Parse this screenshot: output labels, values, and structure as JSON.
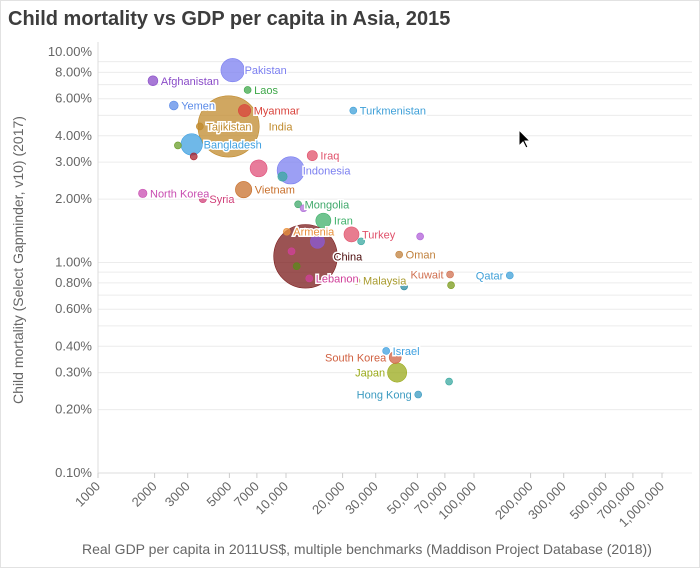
{
  "chart_data": {
    "type": "scatter",
    "title": "Child mortality vs GDP per capita in Asia, 2015",
    "xlabel": "Real GDP per capita in 2011US$, multiple benchmarks (Maddison Project Database (2018))",
    "ylabel": "Child mortality (Select Gapminder, v10) (2017)",
    "x_scale": "log",
    "y_scale": "log",
    "xlim": [
      1000,
      1000000
    ],
    "ylim": [
      0.1,
      10
    ],
    "grid": "horizontal",
    "x_ticks": [
      "1000",
      "2000",
      "3000",
      "5000",
      "7000",
      "10,000",
      "20,000",
      "30,000",
      "50,000",
      "70,000",
      "100,000",
      "200,000",
      "300,000",
      "500,000",
      "700,000",
      "1,000,000"
    ],
    "x_tick_values": [
      1000,
      2000,
      3000,
      5000,
      7000,
      10000,
      20000,
      30000,
      50000,
      70000,
      100000,
      200000,
      300000,
      500000,
      700000,
      1000000
    ],
    "y_ticks": [
      "10.00%",
      "8.00%",
      "6.00%",
      "4.00%",
      "3.00%",
      "2.00%",
      "1.00%",
      "0.80%",
      "0.60%",
      "0.40%",
      "0.30%",
      "0.20%",
      "0.10%"
    ],
    "y_tick_values": [
      10,
      8,
      6,
      4,
      3,
      2,
      1,
      0.8,
      0.6,
      0.4,
      0.3,
      0.2,
      0.1
    ],
    "points": [
      {
        "label": "Pakistan",
        "x": 5200,
        "y": 8.2,
        "size": 190,
        "color": "#7b7ff0"
      },
      {
        "label": "Afghanistan",
        "x": 1960,
        "y": 7.3,
        "size": 34,
        "color": "#8a4bc8"
      },
      {
        "label": "Laos",
        "x": 6250,
        "y": 6.6,
        "size": 7,
        "color": "#3fa84a"
      },
      {
        "label": "Yemen",
        "x": 2530,
        "y": 5.57,
        "size": 27,
        "color": "#5b8be8"
      },
      {
        "label": "Myanmar",
        "x": 6020,
        "y": 5.27,
        "size": 53,
        "color": "#d9433c"
      },
      {
        "label": "India",
        "x": 4950,
        "y": 4.43,
        "size": 1300,
        "color": "#c08a2c"
      },
      {
        "label": "Tajikistan",
        "x": 3480,
        "y": 4.43,
        "size": 8,
        "color": "#c08a2c"
      },
      {
        "label": "Turkmenistan",
        "x": 22800,
        "y": 5.27,
        "size": 5,
        "color": "#3fa0d8"
      },
      {
        "label": "Bangladesh",
        "x": 3150,
        "y": 3.64,
        "size": 160,
        "color": "#3fa0e0"
      },
      {
        "label": "",
        "x": 2660,
        "y": 3.6,
        "size": 6,
        "color": "#6a9e2a"
      },
      {
        "label": "",
        "x": 3230,
        "y": 3.19,
        "size": 6,
        "color": "#a8202c"
      },
      {
        "label": "Iraq",
        "x": 13800,
        "y": 3.22,
        "size": 36,
        "color": "#e0506a"
      },
      {
        "label": "",
        "x": 7150,
        "y": 2.8,
        "size": 100,
        "color": "#e0507a"
      },
      {
        "label": "Indonesia",
        "x": 10600,
        "y": 2.74,
        "size": 258,
        "color": "#7b7ff0"
      },
      {
        "label": "",
        "x": 9580,
        "y": 2.56,
        "size": 30,
        "color": "#3aa8a0"
      },
      {
        "label": "North Korea",
        "x": 1730,
        "y": 2.13,
        "size": 25,
        "color": "#c84cb0"
      },
      {
        "label": "Syria",
        "x": 3610,
        "y": 2.0,
        "size": 18,
        "color": "#d0407a"
      },
      {
        "label": "Vietnam",
        "x": 5950,
        "y": 2.22,
        "size": 93,
        "color": "#c8702c"
      },
      {
        "label": "Mongolia",
        "x": 11600,
        "y": 1.89,
        "size": 3,
        "color": "#3fa86a"
      },
      {
        "label": "",
        "x": 12400,
        "y": 1.81,
        "size": 3,
        "color": "#b070d8"
      },
      {
        "label": "Iran",
        "x": 15800,
        "y": 1.58,
        "size": 79,
        "color": "#3fb06a"
      },
      {
        "label": "Armenia",
        "x": 10100,
        "y": 1.4,
        "size": 3,
        "color": "#e8903c"
      },
      {
        "label": "Turkey",
        "x": 22300,
        "y": 1.36,
        "size": 78,
        "color": "#e0506a"
      },
      {
        "label": "",
        "x": 51700,
        "y": 1.33,
        "size": 4,
        "color": "#b060d8"
      },
      {
        "label": "",
        "x": 25100,
        "y": 1.26,
        "size": 4,
        "color": "#3aa8a0"
      },
      {
        "label": "",
        "x": 14700,
        "y": 1.26,
        "size": 68,
        "color": "#8a5ad8"
      },
      {
        "label": "China",
        "x": 12700,
        "y": 1.07,
        "size": 1400,
        "color": "#7a1a1a"
      },
      {
        "label": "Oman",
        "x": 40000,
        "y": 1.09,
        "size": 4,
        "color": "#c0803c"
      },
      {
        "label": "",
        "x": 10700,
        "y": 1.13,
        "size": 4,
        "color": "#d0409a"
      },
      {
        "label": "",
        "x": 11400,
        "y": 0.96,
        "size": 6,
        "color": "#5a8a1a"
      },
      {
        "label": "Lebanon",
        "x": 13300,
        "y": 0.84,
        "size": 6,
        "color": "#d0409a"
      },
      {
        "label": "Malaysia",
        "x": 23700,
        "y": 0.82,
        "size": 3,
        "color": "#a89a2c"
      },
      {
        "label": "Kuwait",
        "x": 74600,
        "y": 0.877,
        "size": 4,
        "color": "#d07050"
      },
      {
        "label": "Qatar",
        "x": 155000,
        "y": 0.868,
        "size": 3,
        "color": "#3fa0d8"
      },
      {
        "label": "",
        "x": 42500,
        "y": 0.77,
        "size": 4,
        "color": "#2a8aa0"
      },
      {
        "label": "",
        "x": 75500,
        "y": 0.78,
        "size": 4,
        "color": "#7a9a1a"
      },
      {
        "label": "Israel",
        "x": 34100,
        "y": 0.38,
        "size": 8,
        "color": "#3fa0e0"
      },
      {
        "label": "South Korea",
        "x": 38100,
        "y": 0.354,
        "size": 50,
        "color": "#d06040"
      },
      {
        "label": "Japan",
        "x": 39000,
        "y": 0.3,
        "size": 127,
        "color": "#9aaa1a"
      },
      {
        "label": "",
        "x": 73700,
        "y": 0.272,
        "size": 6,
        "color": "#3aa8a0"
      },
      {
        "label": "Hong Kong",
        "x": 50500,
        "y": 0.236,
        "size": 7,
        "color": "#3a9ac0"
      }
    ]
  }
}
